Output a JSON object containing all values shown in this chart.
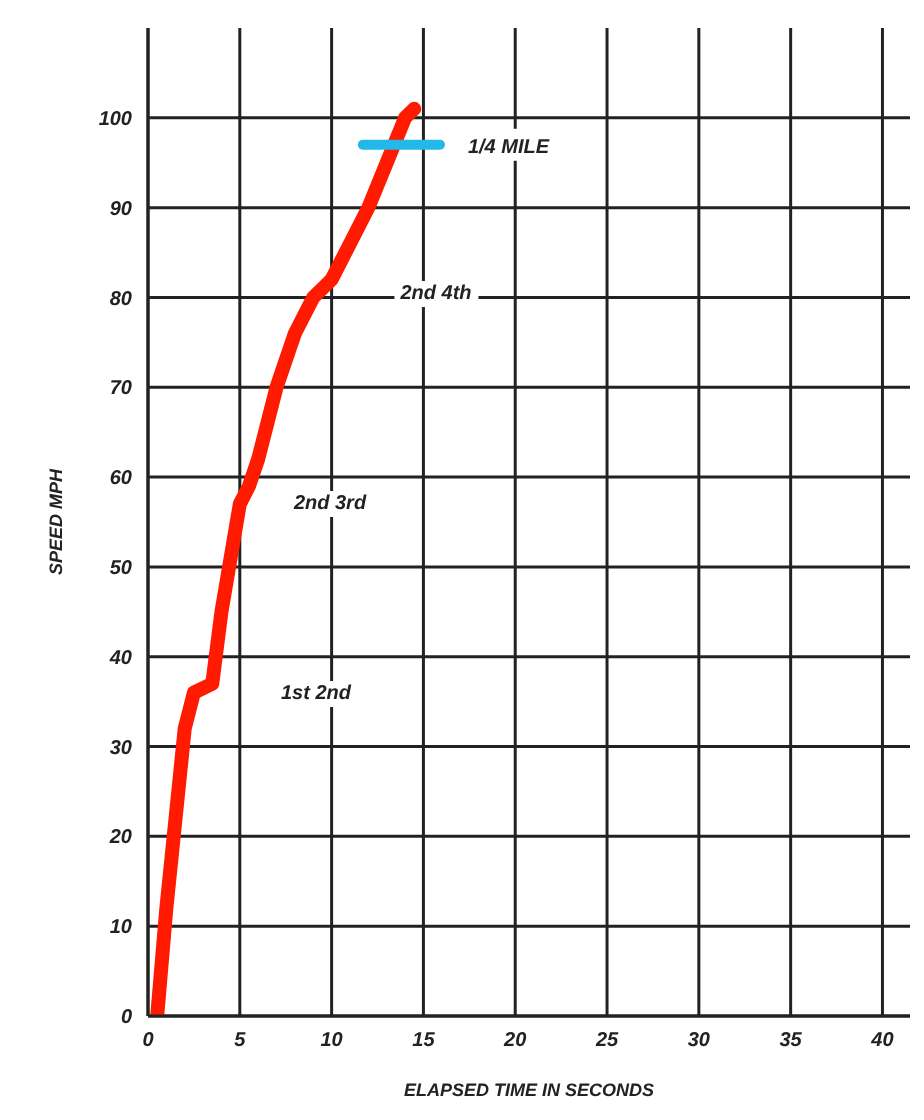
{
  "chart_data": {
    "type": "line",
    "xlabel": "ELAPSED TIME IN SECONDS",
    "ylabel": "SPEED MPH",
    "xlim": [
      0,
      41.5
    ],
    "xticks": [
      0,
      5,
      10,
      15,
      20,
      25,
      30,
      35,
      40
    ],
    "ylim": [
      0,
      110
    ],
    "yticks": [
      0,
      10,
      20,
      30,
      40,
      50,
      60,
      70,
      80,
      90,
      100
    ],
    "grid": true,
    "marker": "none",
    "line_style": "solid",
    "series": [
      {
        "color": "#ff1a00",
        "x": [
          0.5,
          1,
          1.5,
          2,
          2.5,
          3.5,
          4,
          5,
          5.5,
          6,
          7,
          8,
          9,
          10,
          11,
          12,
          13,
          14,
          14.5
        ],
        "values": [
          0,
          12,
          22,
          32,
          36,
          37,
          45,
          57,
          59,
          62,
          70,
          76,
          80,
          82,
          86,
          90,
          95,
          100,
          101
        ]
      },
      {
        "name": "1/4 MILE",
        "color": "#22b8e8",
        "x": [
          11.7,
          15.9
        ],
        "values": [
          97,
          97
        ]
      }
    ],
    "annotations": [
      "1st 2nd",
      "2nd 3rd",
      "2nd 4th"
    ]
  }
}
